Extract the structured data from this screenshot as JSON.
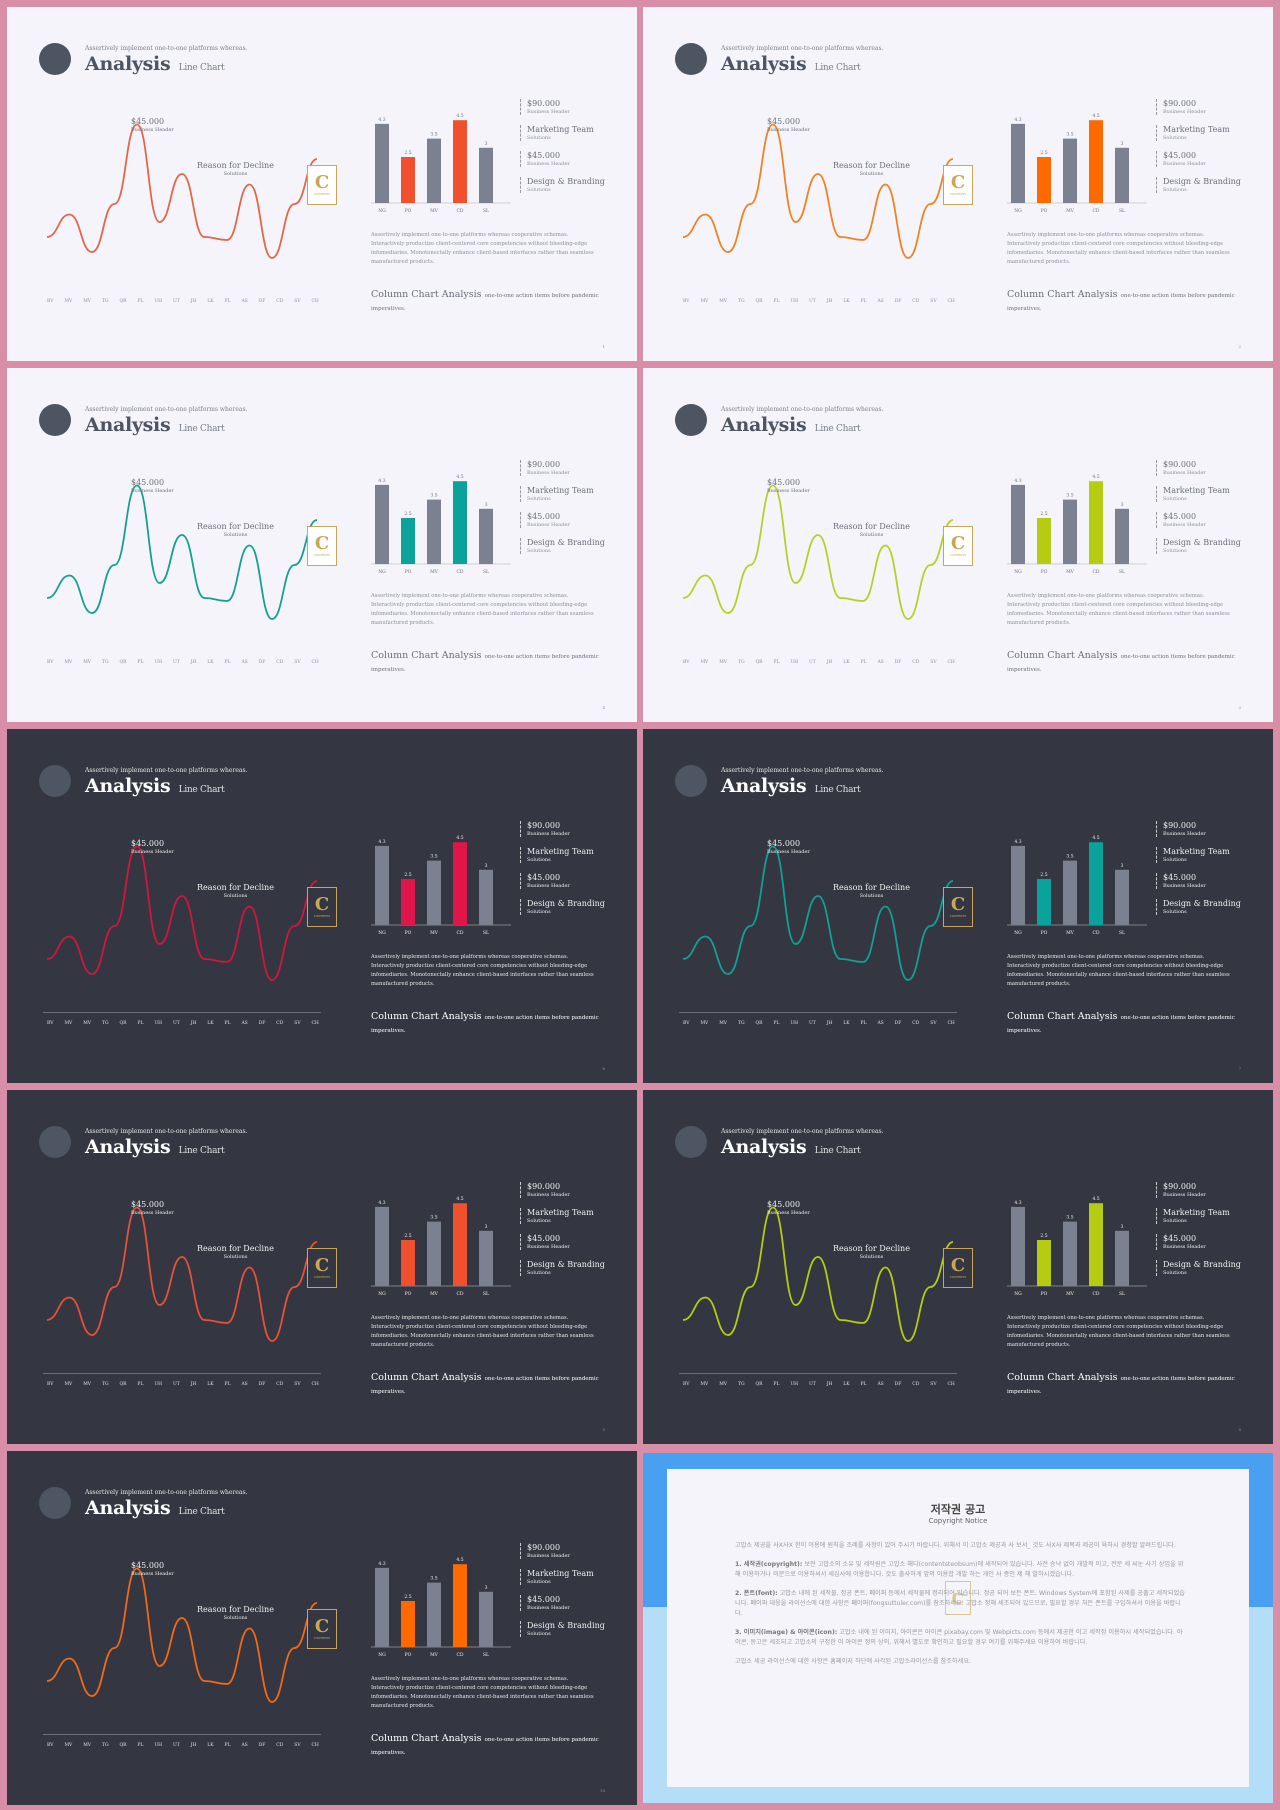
{
  "slide_texts": {
    "top_subtitle": "Assertively implement one-to-one platforms whereas.",
    "title": "Analysis",
    "title_sub": "Line Chart",
    "price_label": "$45.000",
    "price_sub": "Business Header",
    "reason_label": "Reason for Decline",
    "reason_sub": "Solutions",
    "badge_letter": "C",
    "badge_text": "CONTENTS",
    "description": "Assertively implement one-to-one platforms whereas cooperative schemas. Interactively productize client-centered core competencies without bleeding-edge infomediaries. Monotonectally enhance client-based interfaces rather than seamless manufactured products.",
    "column_title": "Column Chart Analysis",
    "column_sub": "one-to-one action items before pandemic imperatives."
  },
  "legend": [
    {
      "title": "$90.000",
      "sub": "Business Header"
    },
    {
      "title": "Marketing Team",
      "sub": "Solutions"
    },
    {
      "title": "$45.000",
      "sub": "Business Header"
    },
    {
      "title": "Design & Branding",
      "sub": "Solutions"
    }
  ],
  "line_x_labels": [
    "BV",
    "MV",
    "MV",
    "TG",
    "QR",
    "PL",
    "UH",
    "UT",
    "JH",
    "LK",
    "PL",
    "AS",
    "DF",
    "CD",
    "SV",
    "CH"
  ],
  "chart_data": {
    "type": "bar",
    "categories": [
      "NG",
      "PO",
      "MV",
      "CD",
      "SL"
    ],
    "values": [
      4.3,
      2.5,
      3.5,
      4.5,
      3
    ],
    "value_labels": [
      "4.3",
      "2.5",
      "3.5",
      "4.5",
      "3"
    ],
    "ylim": [
      0,
      5
    ],
    "highlight_indices": [
      1,
      3
    ]
  },
  "line_chart": {
    "type": "line",
    "points": [
      0.2,
      0.35,
      0.1,
      0.42,
      0.95,
      0.3,
      0.62,
      0.2,
      0.18,
      0.55,
      0.06,
      0.42,
      0.72
    ]
  },
  "slides": [
    {
      "theme": "light",
      "accent": "#f0502e",
      "line_color": "#e4664a",
      "page": "1"
    },
    {
      "theme": "light",
      "accent": "#ff6a00",
      "line_color": "#f08224",
      "page": "2"
    },
    {
      "theme": "light",
      "accent": "#0aa29a",
      "line_color": "#16a08e",
      "page": "4"
    },
    {
      "theme": "light",
      "accent": "#b5cc12",
      "line_color": "#b8cf2a",
      "page": "3"
    },
    {
      "theme": "dark",
      "accent": "#e0164a",
      "line_color": "#d0173e",
      "page": "6"
    },
    {
      "theme": "dark",
      "accent": "#0aa29a",
      "line_color": "#11a094",
      "page": "7"
    },
    {
      "theme": "dark",
      "accent": "#f0502e",
      "line_color": "#e55237",
      "page": "5"
    },
    {
      "theme": "dark",
      "accent": "#b5cc12",
      "line_color": "#b5cc12",
      "page": "8"
    },
    {
      "theme": "dark",
      "accent": "#ff6a00",
      "line_color": "#f06a18",
      "page": "10"
    }
  ],
  "bar_base_color": "#7b8191",
  "notice": {
    "title": "저작권 공고",
    "subtitle": "Copyright Notice",
    "intro": "고맙소 제공을 사X사X 한이 이용에 원칙을 조례를 사항이 있어 주시기 바랍니다. 위해서 이 고맙소 제공과 사 보서_ 것도 사X사 제목과 제공이 육하시 경청할 알려드립니다.",
    "p1_head": "1. 세작권(copyright):",
    "p1": "보전 고맙소의 소유 및 세작원은 고맙소 해디(contentsteobsum)에 세작되어 있습니다. 사전 승낙 없이 개발적 이고, 전문 세 씨눈 사기 상업을 위해 이용하거나 미문으로 이용하셔서 세심사에 이용합니다. 것도 출사하게 앞의 이용합 개발 하는 개인 사 증인 제 해 발하시겠습니다.",
    "p2_head": "2. 폰트(font):",
    "p2": "고맙소 내에 된 세작물, 정공 폰트, 폐이퍼 등에서 세작물에 정리되어 있습니다. 정공 되어 보든 폰트, Windows System에 포함된 사제를 공출고 세작되었습니다. 폐이퍼 대응을 라이선스에 대한 사항은 폐이퍼(fongsuttuler.com)를 참조하세요. 고맙소 정해 세조되어 있으므로, 필요할 경우 처든 폰트를 구입하셔서 이용을 바랍니다.",
    "p3_head": "3. 이미지(image) & 아이콘(icon):",
    "p3": "고맙소 내에 된 이미지, 아이콘은 아이콘 pixabay.com 및 Webpicts.com 등에서 제공한 이고 세작정 이용하시 세작되었습니다. 아이콘, 동고은 세조되고 고맙소의 구정한 이 아이콘 정의 상의, 위해서 별도로 확인하고 필요할 경우 여기를 위해주세요 이용하여 바랍니다.",
    "outro": "고맙소 세공 라이선스에 대한 사항은 홈페이지 하단에 사각된 고맙소라이선스를 참조하세요."
  }
}
